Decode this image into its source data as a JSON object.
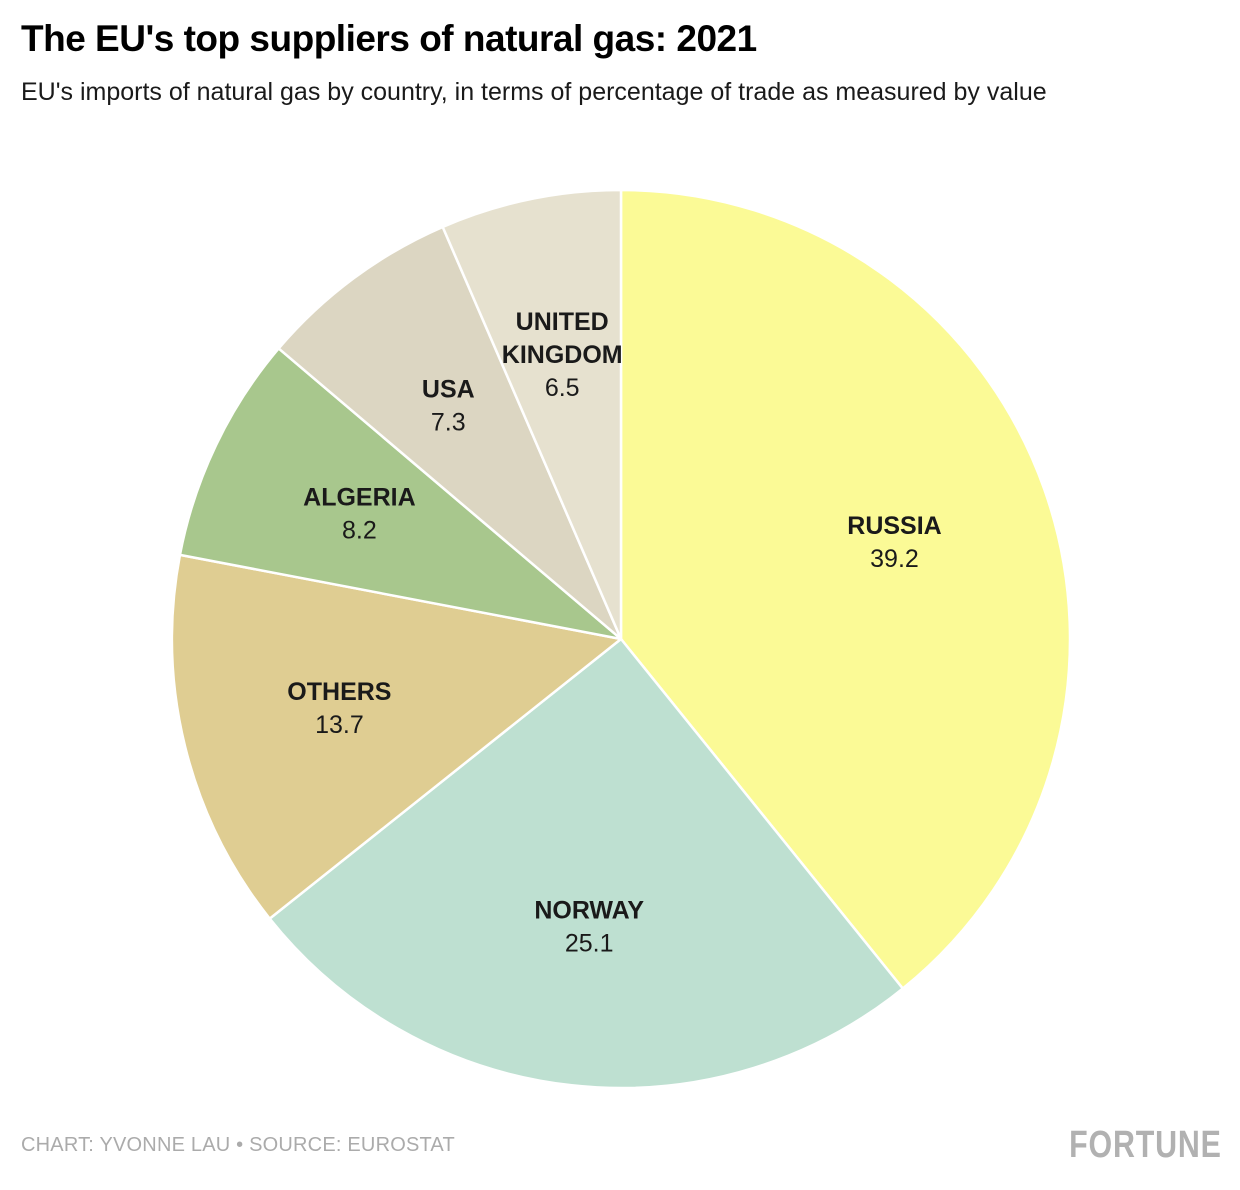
{
  "chart_data": {
    "type": "pie",
    "title": "The EU's top suppliers of natural gas: 2021",
    "subtitle": "EU's imports of natural gas by country, in terms of percentage of trade as measured by value",
    "categories": [
      "RUSSIA",
      "NORWAY",
      "OTHERS",
      "ALGERIA",
      "USA",
      "UNITED KINGDOM"
    ],
    "values": [
      39.2,
      25.1,
      13.7,
      8.2,
      7.3,
      6.5
    ],
    "colors": [
      "#fbfa96",
      "#bee0d1",
      "#dfcd92",
      "#a8c78d",
      "#dcd6c2",
      "#e6e1cf"
    ],
    "start_angle_deg": 0,
    "direction": "clockwise",
    "legend": "none",
    "label_style": "inside: category name (bold) above value"
  },
  "footer": {
    "credit": "CHART: YVONNE LAU • SOURCE: EUROSTAT",
    "brand": "FORTUNE"
  },
  "palette": {
    "label_text": "#1a1a1a",
    "slice_border": "#ffffff",
    "footer_text": "#ababab",
    "brand_text": "#b1b1b1"
  }
}
